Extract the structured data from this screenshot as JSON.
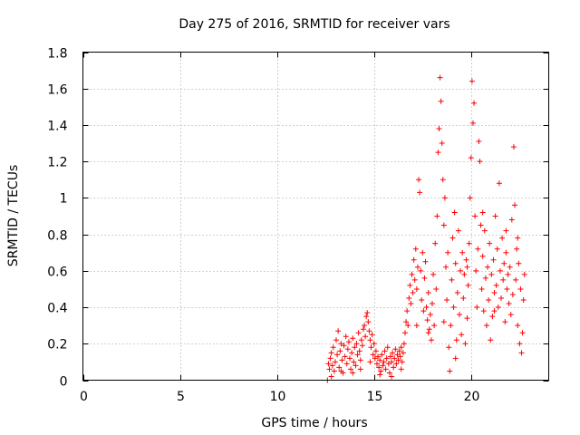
{
  "chart_data": {
    "type": "scatter",
    "title": "Day 275 of 2016, SRMTID for receiver vars",
    "xlabel": "GPS time / hours",
    "ylabel": "SRMTID / TECUs",
    "xlim": [
      0,
      24
    ],
    "ylim": [
      0,
      1.8
    ],
    "xticks": [
      0,
      5,
      10,
      15,
      20
    ],
    "xtick_labels": [
      "0",
      "5",
      "10",
      "15",
      "20"
    ],
    "yticks": [
      0,
      0.2,
      0.4,
      0.6,
      0.8,
      1,
      1.2,
      1.4,
      1.6,
      1.8
    ],
    "ytick_labels": [
      "0",
      "0.2",
      "0.4",
      "0.6",
      "0.8",
      "1",
      "1.2",
      "1.4",
      "1.6",
      "1.8"
    ],
    "grid": true,
    "marker": "plus",
    "color": "#ff0000",
    "series": [
      {
        "name": "SRMTID",
        "points": [
          [
            12.6,
            0.0
          ],
          [
            12.65,
            0.09
          ],
          [
            12.7,
            0.06
          ],
          [
            12.75,
            0.12
          ],
          [
            12.8,
            0.15
          ],
          [
            12.85,
            0.08
          ],
          [
            12.9,
            0.18
          ],
          [
            12.95,
            0.05
          ],
          [
            13.0,
            0.1
          ],
          [
            13.05,
            0.22
          ],
          [
            13.1,
            0.14
          ],
          [
            13.15,
            0.27
          ],
          [
            13.2,
            0.07
          ],
          [
            13.25,
            0.16
          ],
          [
            13.3,
            0.2
          ],
          [
            13.35,
            0.11
          ],
          [
            13.4,
            0.04
          ],
          [
            13.45,
            0.19
          ],
          [
            13.5,
            0.13
          ],
          [
            13.55,
            0.24
          ],
          [
            13.6,
            0.09
          ],
          [
            13.65,
            0.17
          ],
          [
            13.7,
            0.21
          ],
          [
            13.75,
            0.12
          ],
          [
            13.8,
            0.06
          ],
          [
            13.85,
            0.15
          ],
          [
            13.9,
            0.23
          ],
          [
            13.95,
            0.1
          ],
          [
            14.0,
            0.18
          ],
          [
            14.05,
            0.08
          ],
          [
            14.1,
            0.2
          ],
          [
            14.15,
            0.14
          ],
          [
            14.2,
            0.26
          ],
          [
            14.25,
            0.16
          ],
          [
            14.3,
            0.11
          ],
          [
            14.35,
            0.22
          ],
          [
            14.4,
            0.19
          ],
          [
            14.45,
            0.28
          ],
          [
            14.5,
            0.3
          ],
          [
            14.55,
            0.24
          ],
          [
            14.6,
            0.35
          ],
          [
            14.65,
            0.37
          ],
          [
            14.7,
            0.32
          ],
          [
            14.75,
            0.27
          ],
          [
            14.8,
            0.22
          ],
          [
            14.85,
            0.18
          ],
          [
            14.9,
            0.25
          ],
          [
            14.95,
            0.14
          ],
          [
            15.0,
            0.2
          ],
          [
            15.05,
            0.12
          ],
          [
            15.1,
            0.16
          ],
          [
            15.15,
            0.09
          ],
          [
            15.2,
            0.13
          ],
          [
            15.25,
            0.07
          ],
          [
            15.3,
            0.11
          ],
          [
            15.35,
            0.05
          ],
          [
            15.4,
            0.14
          ],
          [
            15.45,
            0.08
          ],
          [
            15.5,
            0.1
          ],
          [
            15.55,
            0.16
          ],
          [
            15.6,
            0.06
          ],
          [
            15.65,
            0.12
          ],
          [
            15.7,
            0.18
          ],
          [
            15.75,
            0.09
          ],
          [
            15.8,
            0.04
          ],
          [
            15.85,
            0.13
          ],
          [
            15.9,
            0.1
          ],
          [
            15.95,
            0.15
          ],
          [
            16.0,
            0.07
          ],
          [
            16.05,
            0.12
          ],
          [
            16.1,
            0.17
          ],
          [
            16.15,
            0.09
          ],
          [
            16.2,
            0.14
          ],
          [
            16.25,
            0.11
          ],
          [
            16.3,
            0.16
          ],
          [
            16.35,
            0.13
          ],
          [
            16.4,
            0.18
          ],
          [
            16.45,
            0.1
          ],
          [
            16.5,
            0.15
          ],
          [
            16.55,
            0.2
          ],
          [
            16.6,
            0.26
          ],
          [
            16.65,
            0.32
          ],
          [
            16.7,
            0.38
          ],
          [
            16.75,
            0.3
          ],
          [
            16.8,
            0.45
          ],
          [
            16.85,
            0.52
          ],
          [
            16.9,
            0.42
          ],
          [
            16.95,
            0.58
          ],
          [
            17.0,
            0.48
          ],
          [
            17.05,
            0.66
          ],
          [
            17.1,
            0.55
          ],
          [
            17.15,
            0.72
          ],
          [
            17.2,
            0.5
          ],
          [
            17.25,
            0.62
          ],
          [
            17.3,
            1.1
          ],
          [
            17.35,
            1.03
          ],
          [
            17.4,
            0.6
          ],
          [
            17.45,
            0.44
          ],
          [
            17.5,
            0.7
          ],
          [
            17.55,
            0.38
          ],
          [
            17.6,
            0.56
          ],
          [
            17.65,
            0.65
          ],
          [
            17.7,
            0.4
          ],
          [
            17.75,
            0.33
          ],
          [
            17.8,
            0.48
          ],
          [
            17.85,
            0.28
          ],
          [
            17.9,
            0.36
          ],
          [
            17.95,
            0.22
          ],
          [
            18.0,
            0.42
          ],
          [
            18.05,
            0.58
          ],
          [
            18.1,
            0.3
          ],
          [
            18.15,
            0.75
          ],
          [
            18.2,
            0.5
          ],
          [
            18.25,
            0.9
          ],
          [
            18.3,
            1.25
          ],
          [
            18.35,
            1.38
          ],
          [
            18.4,
            1.66
          ],
          [
            18.45,
            1.53
          ],
          [
            18.5,
            1.3
          ],
          [
            18.55,
            1.1
          ],
          [
            18.6,
            0.85
          ],
          [
            18.65,
            1.0
          ],
          [
            18.7,
            0.62
          ],
          [
            18.75,
            0.44
          ],
          [
            18.8,
            0.7
          ],
          [
            18.85,
            0.18
          ],
          [
            18.9,
            0.05
          ],
          [
            18.95,
            0.3
          ],
          [
            19.0,
            0.55
          ],
          [
            19.05,
            0.78
          ],
          [
            19.1,
            0.4
          ],
          [
            19.15,
            0.92
          ],
          [
            19.2,
            0.64
          ],
          [
            19.25,
            0.22
          ],
          [
            19.3,
            0.48
          ],
          [
            19.35,
            0.82
          ],
          [
            19.4,
            0.36
          ],
          [
            19.45,
            0.6
          ],
          [
            19.5,
            0.25
          ],
          [
            19.55,
            0.7
          ],
          [
            19.6,
            0.45
          ],
          [
            19.65,
            0.58
          ],
          [
            19.7,
            0.2
          ],
          [
            19.75,
            0.66
          ],
          [
            19.8,
            0.34
          ],
          [
            19.85,
            0.52
          ],
          [
            19.9,
            0.75
          ],
          [
            19.95,
            1.0
          ],
          [
            20.0,
            1.22
          ],
          [
            20.05,
            1.64
          ],
          [
            20.1,
            1.41
          ],
          [
            20.15,
            1.52
          ],
          [
            20.2,
            0.9
          ],
          [
            20.25,
            0.6
          ],
          [
            20.3,
            0.4
          ],
          [
            20.35,
            0.72
          ],
          [
            20.4,
            1.31
          ],
          [
            20.45,
            1.2
          ],
          [
            20.5,
            0.85
          ],
          [
            20.55,
            0.5
          ],
          [
            20.6,
            0.68
          ],
          [
            20.65,
            0.38
          ],
          [
            20.7,
            0.82
          ],
          [
            20.75,
            0.56
          ],
          [
            20.8,
            0.3
          ],
          [
            20.85,
            0.62
          ],
          [
            20.9,
            0.44
          ],
          [
            20.95,
            0.75
          ],
          [
            21.0,
            0.22
          ],
          [
            21.05,
            0.58
          ],
          [
            21.1,
            0.35
          ],
          [
            21.15,
            0.66
          ],
          [
            21.2,
            0.48
          ],
          [
            21.25,
            0.9
          ],
          [
            21.3,
            0.52
          ],
          [
            21.35,
            0.72
          ],
          [
            21.4,
            0.4
          ],
          [
            21.45,
            1.08
          ],
          [
            21.5,
            0.6
          ],
          [
            21.55,
            0.45
          ],
          [
            21.6,
            0.78
          ],
          [
            21.65,
            0.55
          ],
          [
            21.7,
            0.64
          ],
          [
            21.75,
            0.32
          ],
          [
            21.8,
            0.7
          ],
          [
            21.85,
            0.5
          ],
          [
            21.9,
            0.58
          ],
          [
            21.95,
            0.42
          ],
          [
            22.0,
            0.62
          ],
          [
            22.05,
            0.36
          ],
          [
            22.1,
            0.88
          ],
          [
            22.15,
            0.47
          ],
          [
            22.2,
            1.28
          ],
          [
            22.25,
            0.96
          ],
          [
            22.3,
            0.55
          ],
          [
            22.35,
            0.72
          ],
          [
            22.4,
            0.3
          ],
          [
            22.45,
            0.64
          ],
          [
            22.5,
            0.2
          ],
          [
            22.55,
            0.5
          ],
          [
            22.6,
            0.15
          ],
          [
            22.65,
            0.26
          ],
          [
            22.7,
            0.44
          ],
          [
            22.75,
            0.58
          ],
          [
            12.8,
            0.02
          ],
          [
            13.3,
            0.05
          ],
          [
            13.9,
            0.04
          ],
          [
            14.3,
            0.06
          ],
          [
            14.8,
            0.1
          ],
          [
            15.3,
            0.03
          ],
          [
            15.9,
            0.02
          ],
          [
            16.4,
            0.06
          ],
          [
            17.2,
            0.3
          ],
          [
            17.8,
            0.26
          ],
          [
            18.6,
            0.32
          ],
          [
            19.2,
            0.12
          ],
          [
            19.8,
            0.62
          ],
          [
            20.6,
            0.92
          ],
          [
            21.2,
            0.38
          ],
          [
            21.8,
            0.82
          ],
          [
            22.4,
            0.78
          ]
        ]
      }
    ]
  }
}
